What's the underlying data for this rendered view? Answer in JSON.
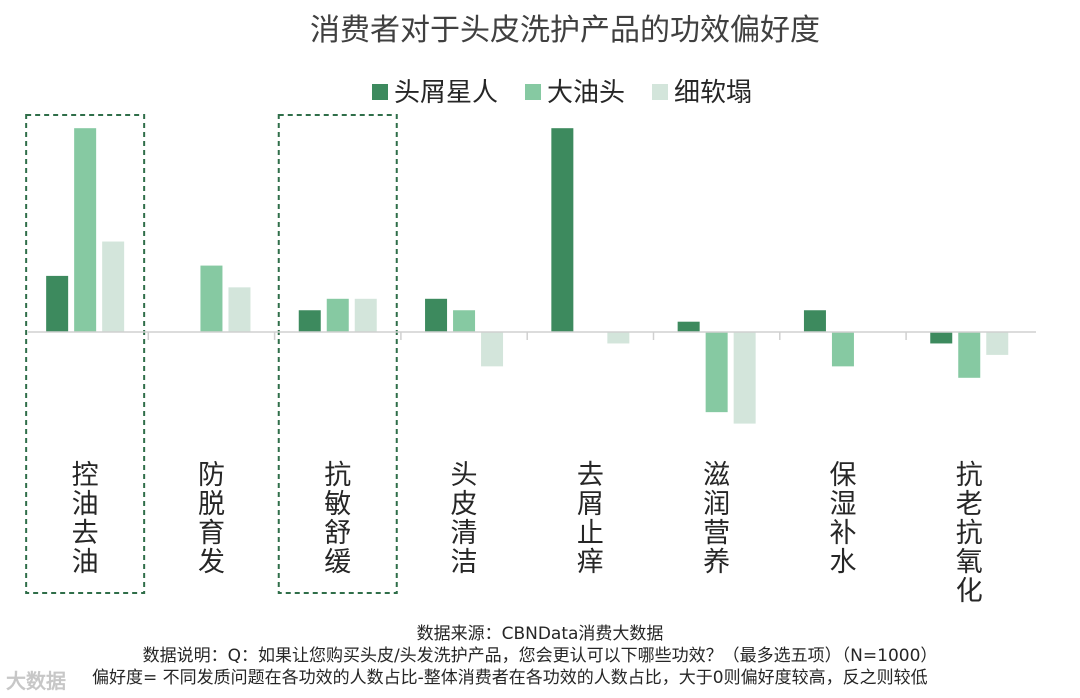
{
  "chart_data": {
    "type": "bar",
    "title": "消费者对于头皮洗护产品的功效偏好度",
    "categories": [
      "控油去油",
      "防脱育发",
      "抗敏舒缓",
      "头皮清洁",
      "去屑止痒",
      "滋润营养",
      "保湿补水",
      "抗老抗氧化"
    ],
    "series": [
      {
        "name": "头屑星人",
        "color": "#3d8a5e",
        "values": [
          4.9,
          0,
          1.9,
          2.9,
          17.8,
          0.9,
          1.9,
          -1.0
        ]
      },
      {
        "name": "大油头",
        "color": "#86c9a2",
        "values": [
          17.8,
          5.8,
          2.9,
          1.9,
          0,
          -7.0,
          -3.0,
          -4.0
        ]
      },
      {
        "name": "细软塌",
        "color": "#d3e5db",
        "values": [
          7.9,
          3.9,
          2.9,
          -3.0,
          -1.0,
          -8.0,
          0,
          -2.0
        ]
      }
    ],
    "ylim": [
      -10,
      18
    ],
    "highlighted_categories": [
      "控油去油",
      "抗敏舒缓"
    ],
    "legend_position": "top"
  },
  "footer": {
    "source": "数据来源：CBNData消费大数据",
    "note": "数据说明：Q：如果让您购买头皮/头发洗护产品，您会更认可以下哪些功效？（最多选五项）（N=1000）",
    "definition": "偏好度= 不同发质问题在各功效的人数占比-整体消费者在各功效的人数占比，大于0则偏好度较高，反之则较低"
  },
  "watermark": "大数据"
}
